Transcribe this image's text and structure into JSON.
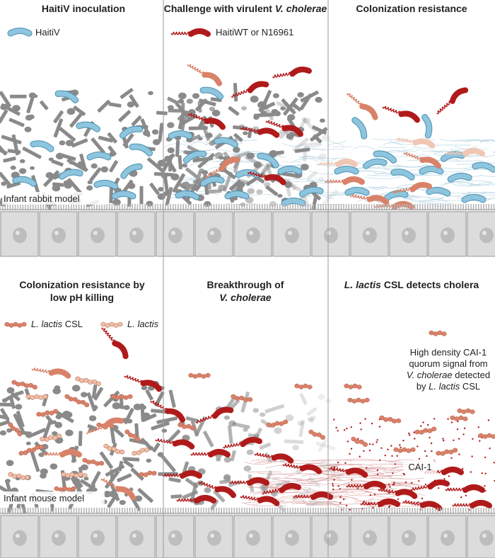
{
  "panels": {
    "p1": {
      "title": "HaitiV inoculation"
    },
    "p2": {
      "title_plain": "Challenge with virulent ",
      "title_italic": "V. cholerae"
    },
    "p3": {
      "title": "Colonization resistance"
    },
    "p4": {
      "title_line1": "Colonization resistance by",
      "title_line2": "low pH killing"
    },
    "p5": {
      "title_line1": "Breakthrough of",
      "title_line2": "V. cholerae"
    },
    "p6": {
      "title_italic": "L. lactis",
      "title_plain": " CSL detects cholera"
    }
  },
  "legend": {
    "haitiv": "HaitiV",
    "haitiwt": "HaitiWT or N16961",
    "llactis_csl_italic": "L. lactis",
    "llactis_csl_plain": " CSL",
    "llactis": "L. lactis"
  },
  "labels": {
    "infant_rabbit": "Infant rabbit model",
    "infant_mouse": "Infant mouse model",
    "cai1": "CAI-1",
    "quorum_line1": "High density CAI-1",
    "quorum_line2": "quorum signal from",
    "quorum_line3_italic": "V. cholerae",
    "quorum_line3_plain": " detected",
    "quorum_line4_plain": "by ",
    "quorum_line4_italic": "L. lactis",
    "quorum_line4_end": " CSL"
  },
  "colors": {
    "haitiv": "#8ec5de",
    "haitiv_outline": "#4a8fb0",
    "vibrio_red": "#b01a1a",
    "llactis_csl": "#d9826a",
    "llactis": "#eebfa8",
    "gray_microbe": "#8a8a8a",
    "epithelium": "#d9d9d9",
    "mucus_blue": "#a9cfe0",
    "mucus_red": "#d79a9a"
  }
}
